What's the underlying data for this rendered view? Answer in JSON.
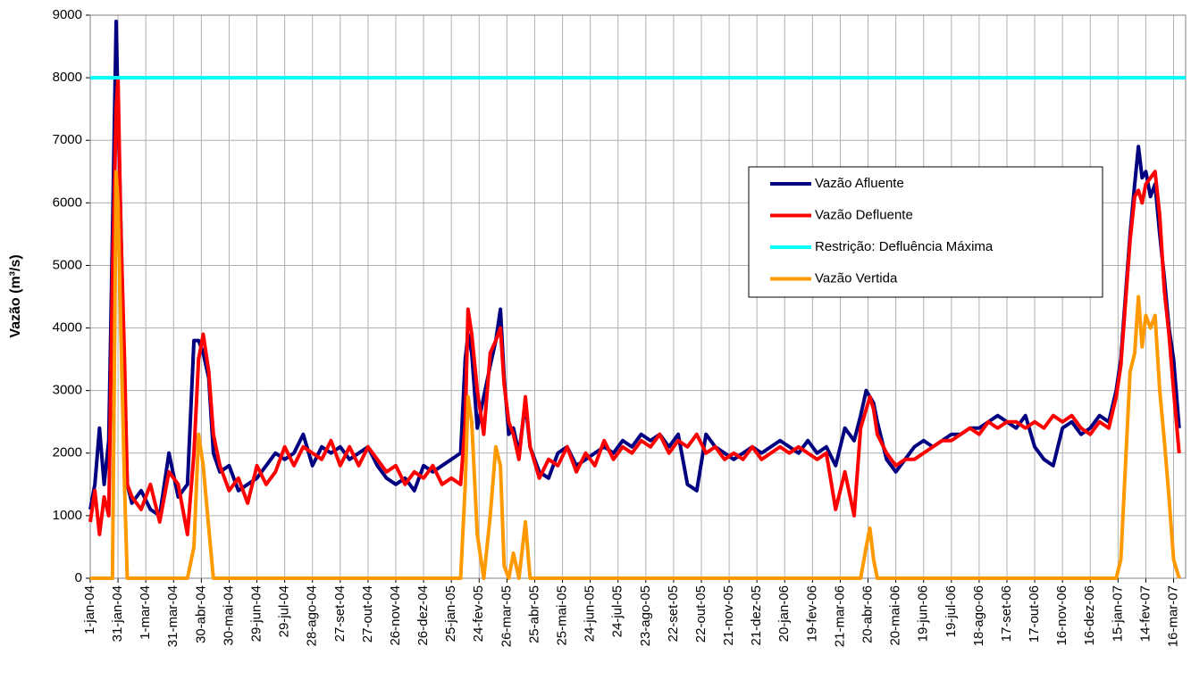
{
  "chart_data": {
    "type": "line",
    "y_label": "Vazão (m³/s)",
    "x": [
      "2004-01-01",
      "2004-01-06",
      "2004-01-11",
      "2004-01-16",
      "2004-01-21",
      "2004-01-25",
      "2004-01-29",
      "2004-01-31",
      "2004-02-03",
      "2004-02-07",
      "2004-02-10",
      "2004-02-15",
      "2004-02-25",
      "2004-03-06",
      "2004-03-16",
      "2004-03-26",
      "2004-04-05",
      "2004-04-15",
      "2004-04-22",
      "2004-04-27",
      "2004-05-02",
      "2004-05-08",
      "2004-05-13",
      "2004-05-20",
      "2004-05-30",
      "2004-06-09",
      "2004-06-19",
      "2004-06-29",
      "2004-07-09",
      "2004-07-19",
      "2004-07-29",
      "2004-08-08",
      "2004-08-18",
      "2004-08-28",
      "2004-09-07",
      "2004-09-17",
      "2004-09-27",
      "2004-10-07",
      "2004-10-17",
      "2004-10-27",
      "2004-11-06",
      "2004-11-16",
      "2004-11-26",
      "2004-12-06",
      "2004-12-16",
      "2004-12-26",
      "2005-01-05",
      "2005-01-15",
      "2005-01-25",
      "2005-02-04",
      "2005-02-09",
      "2005-02-12",
      "2005-02-16",
      "2005-02-22",
      "2005-03-01",
      "2005-03-08",
      "2005-03-14",
      "2005-03-19",
      "2005-03-23",
      "2005-03-28",
      "2005-04-02",
      "2005-04-08",
      "2005-04-15",
      "2005-04-20",
      "2005-04-30",
      "2005-05-10",
      "2005-05-20",
      "2005-05-30",
      "2005-06-09",
      "2005-06-19",
      "2005-06-29",
      "2005-07-09",
      "2005-07-19",
      "2005-07-29",
      "2005-08-08",
      "2005-08-18",
      "2005-08-28",
      "2005-09-07",
      "2005-09-17",
      "2005-09-27",
      "2005-10-07",
      "2005-10-17",
      "2005-10-27",
      "2005-11-06",
      "2005-11-16",
      "2005-11-26",
      "2005-12-06",
      "2005-12-16",
      "2005-12-26",
      "2006-01-05",
      "2006-01-15",
      "2006-01-25",
      "2006-02-04",
      "2006-02-14",
      "2006-02-24",
      "2006-03-06",
      "2006-03-16",
      "2006-03-26",
      "2006-04-05",
      "2006-04-12",
      "2006-04-18",
      "2006-04-22",
      "2006-04-26",
      "2006-04-30",
      "2006-05-10",
      "2006-05-20",
      "2006-05-30",
      "2006-06-09",
      "2006-06-19",
      "2006-06-29",
      "2006-07-09",
      "2006-07-19",
      "2006-07-29",
      "2006-08-08",
      "2006-08-18",
      "2006-08-28",
      "2006-09-07",
      "2006-09-17",
      "2006-09-27",
      "2006-10-07",
      "2006-10-17",
      "2006-10-27",
      "2006-11-06",
      "2006-11-16",
      "2006-11-26",
      "2006-12-06",
      "2006-12-16",
      "2006-12-26",
      "2007-01-05",
      "2007-01-13",
      "2007-01-18",
      "2007-01-23",
      "2007-01-28",
      "2007-02-02",
      "2007-02-06",
      "2007-02-10",
      "2007-02-14",
      "2007-02-19",
      "2007-02-24",
      "2007-03-01",
      "2007-03-06",
      "2007-03-11",
      "2007-03-16",
      "2007-03-22"
    ],
    "series": [
      {
        "name": "Vazão Afluente",
        "color": "#000080",
        "values": [
          1100,
          1500,
          2400,
          1500,
          2200,
          5500,
          8900,
          7500,
          5700,
          3000,
          1500,
          1200,
          1400,
          1100,
          1000,
          2000,
          1300,
          1500,
          3800,
          3800,
          3600,
          3200,
          2000,
          1700,
          1800,
          1400,
          1500,
          1600,
          1800,
          2000,
          1900,
          2000,
          2300,
          1800,
          2100,
          2000,
          2100,
          1900,
          2000,
          2100,
          1800,
          1600,
          1500,
          1600,
          1400,
          1800,
          1700,
          1800,
          1900,
          2000,
          3500,
          3900,
          3600,
          2400,
          2900,
          3400,
          3800,
          4300,
          3200,
          2300,
          2400,
          2000,
          2800,
          2100,
          1700,
          1600,
          2000,
          2100,
          1800,
          1900,
          2000,
          2100,
          2000,
          2200,
          2100,
          2300,
          2200,
          2300,
          2100,
          2300,
          1500,
          1400,
          2300,
          2100,
          2000,
          1900,
          2000,
          2100,
          2000,
          2100,
          2200,
          2100,
          2000,
          2200,
          2000,
          2100,
          1800,
          2400,
          2200,
          2600,
          3000,
          2900,
          2800,
          2500,
          1900,
          1700,
          1900,
          2100,
          2200,
          2100,
          2200,
          2300,
          2300,
          2400,
          2400,
          2500,
          2600,
          2500,
          2400,
          2600,
          2100,
          1900,
          1800,
          2400,
          2500,
          2300,
          2400,
          2600,
          2500,
          3000,
          3500,
          4500,
          5500,
          6300,
          6900,
          6400,
          6500,
          6100,
          6300,
          5500,
          4800,
          4000,
          3500,
          2400
        ]
      },
      {
        "name": "Vazão Defluente",
        "color": "#ff0000",
        "values": [
          900,
          1400,
          700,
          1300,
          1000,
          4800,
          7500,
          8000,
          5600,
          3500,
          1500,
          1300,
          1100,
          1500,
          900,
          1700,
          1500,
          700,
          2000,
          3500,
          3900,
          3300,
          2300,
          1800,
          1400,
          1600,
          1200,
          1800,
          1500,
          1700,
          2100,
          1800,
          2100,
          2000,
          1900,
          2200,
          1800,
          2100,
          1800,
          2100,
          1900,
          1700,
          1800,
          1500,
          1700,
          1600,
          1800,
          1500,
          1600,
          1500,
          2500,
          4300,
          3900,
          3000,
          2300,
          3600,
          3800,
          4000,
          3100,
          2500,
          2300,
          1900,
          2900,
          2100,
          1600,
          1900,
          1800,
          2100,
          1700,
          2000,
          1800,
          2200,
          1900,
          2100,
          2000,
          2200,
          2100,
          2300,
          2000,
          2200,
          2100,
          2300,
          2000,
          2100,
          1900,
          2000,
          1900,
          2100,
          1900,
          2000,
          2100,
          2000,
          2100,
          2000,
          1900,
          2000,
          1100,
          1700,
          1000,
          2400,
          2700,
          2900,
          2700,
          2300,
          2000,
          1800,
          1900,
          1900,
          2000,
          2100,
          2200,
          2200,
          2300,
          2400,
          2300,
          2500,
          2400,
          2500,
          2500,
          2400,
          2500,
          2400,
          2600,
          2500,
          2600,
          2400,
          2300,
          2500,
          2400,
          2900,
          3400,
          4400,
          5400,
          6100,
          6200,
          6000,
          6300,
          6400,
          6500,
          5800,
          4600,
          3900,
          3000,
          2000
        ]
      },
      {
        "name": "Restrição: Defluência Máxima",
        "color": "#00ffff",
        "x": [
          "2004-01-01",
          "2007-03-29"
        ],
        "values": [
          8000,
          8000
        ]
      },
      {
        "name": "Vazão Vertida",
        "color": "#ff9900",
        "values": [
          0,
          0,
          0,
          0,
          0,
          0,
          6500,
          6000,
          4000,
          1500,
          0,
          0,
          0,
          0,
          0,
          0,
          0,
          0,
          500,
          2300,
          1800,
          800,
          0,
          0,
          0,
          0,
          0,
          0,
          0,
          0,
          0,
          0,
          0,
          0,
          0,
          0,
          0,
          0,
          0,
          0,
          0,
          0,
          0,
          0,
          0,
          0,
          0,
          0,
          0,
          0,
          1500,
          2900,
          2500,
          700,
          0,
          1000,
          2100,
          1800,
          200,
          0,
          400,
          0,
          900,
          0,
          0,
          0,
          0,
          0,
          0,
          0,
          0,
          0,
          0,
          0,
          0,
          0,
          0,
          0,
          0,
          0,
          0,
          0,
          0,
          0,
          0,
          0,
          0,
          0,
          0,
          0,
          0,
          0,
          0,
          0,
          0,
          0,
          0,
          0,
          0,
          0,
          500,
          800,
          300,
          0,
          0,
          0,
          0,
          0,
          0,
          0,
          0,
          0,
          0,
          0,
          0,
          0,
          0,
          0,
          0,
          0,
          0,
          0,
          0,
          0,
          0,
          0,
          0,
          0,
          0,
          0,
          300,
          1800,
          3300,
          3600,
          4500,
          3700,
          4200,
          4000,
          4200,
          3000,
          2200,
          1300,
          300,
          0
        ]
      }
    ],
    "xlim": [
      "2004-01-01",
      "2007-03-29"
    ],
    "xticks": [
      {
        "value": "2004-01-01",
        "label": "1-jan-04"
      },
      {
        "value": "2004-01-31",
        "label": "31-jan-04"
      },
      {
        "value": "2004-03-01",
        "label": "1-mar-04"
      },
      {
        "value": "2004-03-31",
        "label": "31-mar-04"
      },
      {
        "value": "2004-04-30",
        "label": "30-abr-04"
      },
      {
        "value": "2004-05-30",
        "label": "30-mai-04"
      },
      {
        "value": "2004-06-29",
        "label": "29-jun-04"
      },
      {
        "value": "2004-07-29",
        "label": "29-jul-04"
      },
      {
        "value": "2004-08-28",
        "label": "28-ago-04"
      },
      {
        "value": "2004-09-27",
        "label": "27-set-04"
      },
      {
        "value": "2004-10-27",
        "label": "27-out-04"
      },
      {
        "value": "2004-11-26",
        "label": "26-nov-04"
      },
      {
        "value": "2004-12-26",
        "label": "26-dez-04"
      },
      {
        "value": "2005-01-25",
        "label": "25-jan-05"
      },
      {
        "value": "2005-02-24",
        "label": "24-fev-05"
      },
      {
        "value": "2005-03-26",
        "label": "26-mar-05"
      },
      {
        "value": "2005-04-25",
        "label": "25-abr-05"
      },
      {
        "value": "2005-05-25",
        "label": "25-mai-05"
      },
      {
        "value": "2005-06-24",
        "label": "24-jun-05"
      },
      {
        "value": "2005-07-24",
        "label": "24-jul-05"
      },
      {
        "value": "2005-08-23",
        "label": "23-ago-05"
      },
      {
        "value": "2005-09-22",
        "label": "22-set-05"
      },
      {
        "value": "2005-10-22",
        "label": "22-out-05"
      },
      {
        "value": "2005-11-21",
        "label": "21-nov-05"
      },
      {
        "value": "2005-12-21",
        "label": "21-dez-05"
      },
      {
        "value": "2006-01-20",
        "label": "20-jan-06"
      },
      {
        "value": "2006-02-19",
        "label": "19-fev-06"
      },
      {
        "value": "2006-03-21",
        "label": "21-mar-06"
      },
      {
        "value": "2006-04-20",
        "label": "20-abr-06"
      },
      {
        "value": "2006-05-20",
        "label": "20-mai-06"
      },
      {
        "value": "2006-06-19",
        "label": "19-jun-06"
      },
      {
        "value": "2006-07-19",
        "label": "19-jul-06"
      },
      {
        "value": "2006-08-18",
        "label": "18-ago-06"
      },
      {
        "value": "2006-09-17",
        "label": "17-set-06"
      },
      {
        "value": "2006-10-17",
        "label": "17-out-06"
      },
      {
        "value": "2006-11-16",
        "label": "16-nov-06"
      },
      {
        "value": "2006-12-16",
        "label": "16-dez-06"
      },
      {
        "value": "2007-01-15",
        "label": "15-jan-07"
      },
      {
        "value": "2007-02-14",
        "label": "14-fev-07"
      },
      {
        "value": "2007-03-16",
        "label": "16-mar-07"
      }
    ],
    "ylim": [
      0,
      9000
    ],
    "yticks": [
      0,
      1000,
      2000,
      3000,
      4000,
      5000,
      6000,
      7000,
      8000,
      9000
    ],
    "grid": true,
    "legend": "right"
  }
}
